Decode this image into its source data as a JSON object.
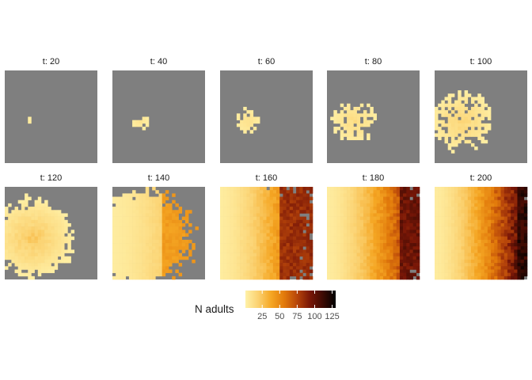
{
  "chart_data": {
    "type": "heatmap",
    "title": "",
    "xlabel": "",
    "ylabel": "",
    "facet_label_prefix": "t: ",
    "facets": [
      {
        "label": "t: 20",
        "t": 20,
        "front": 0.45,
        "spread": 0.05,
        "peak": 8
      },
      {
        "label": "t: 40",
        "t": 40,
        "front": 0.4,
        "spread": 0.1,
        "peak": 10
      },
      {
        "label": "t: 60",
        "t": 60,
        "front": 0.42,
        "spread": 0.14,
        "peak": 12
      },
      {
        "label": "t: 80",
        "t": 80,
        "front": 0.48,
        "spread": 0.24,
        "peak": 15
      },
      {
        "label": "t: 100",
        "t": 100,
        "front": 0.45,
        "spread": 0.33,
        "peak": 20
      },
      {
        "label": "t: 120",
        "t": 120,
        "front": 0.45,
        "spread": 0.43,
        "peak": 28
      },
      {
        "label": "t: 140",
        "t": 140,
        "front": 0.55,
        "spread": 0.55,
        "peak": 45
      },
      {
        "label": "t: 160",
        "t": 160,
        "front": 0.65,
        "spread": 0.75,
        "peak": 90
      },
      {
        "label": "t: 180",
        "t": 180,
        "front": 0.8,
        "spread": 0.9,
        "peak": 105
      },
      {
        "label": "t: 200",
        "t": 200,
        "front": 0.9,
        "spread": 1.0,
        "peak": 125
      }
    ],
    "grid_size": 28,
    "background_color": "#7f7f7f",
    "color_scale": {
      "title": "N adults",
      "breaks": [
        25,
        50,
        75,
        100,
        125
      ],
      "limits": [
        1,
        130
      ],
      "colors": [
        "#FFF1A8",
        "#FBD16F",
        "#F5A623",
        "#E27A0B",
        "#B8460A",
        "#7A1707",
        "#3D0A03",
        "#000000"
      ]
    },
    "legend_position": "bottom"
  }
}
